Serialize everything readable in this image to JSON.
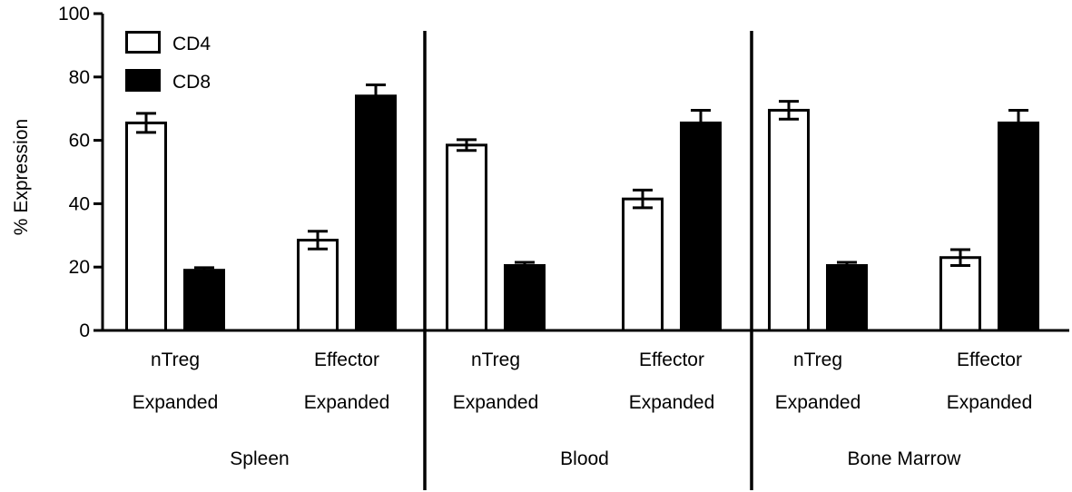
{
  "chart_data": {
    "type": "bar",
    "title": "",
    "xlabel": "",
    "ylabel": "% Expression",
    "ylim": [
      0,
      100
    ],
    "yticks": [
      0,
      20,
      40,
      60,
      80,
      100
    ],
    "grid": false,
    "legend_position": "top-left",
    "groups": [
      {
        "label": "Spleen",
        "categories": [
          {
            "line1": "nTreg",
            "line2": "Expanded"
          },
          {
            "line1": "Effector",
            "line2": "Expanded"
          }
        ]
      },
      {
        "label": "Blood",
        "categories": [
          {
            "line1": "nTreg",
            "line2": "Expanded"
          },
          {
            "line1": "Effector",
            "line2": "Expanded"
          }
        ]
      },
      {
        "label": "Bone Marrow",
        "categories": [
          {
            "line1": "nTreg",
            "line2": "Expanded"
          },
          {
            "line1": "Effector",
            "line2": "Expanded"
          }
        ]
      }
    ],
    "series": [
      {
        "name": "CD4",
        "fill": "#ffffff",
        "stroke": "#000000",
        "values": [
          65.5,
          28.5,
          58.5,
          41.5,
          69.5,
          23
        ],
        "errors": [
          3,
          2.8,
          1.7,
          2.8,
          2.8,
          2.5
        ]
      },
      {
        "name": "CD8",
        "fill": "#000000",
        "stroke": "#000000",
        "values": [
          19,
          74,
          20.5,
          65.5,
          20.5,
          65.5
        ],
        "errors": [
          0.8,
          3.5,
          1,
          4,
          1,
          4
        ]
      }
    ]
  }
}
